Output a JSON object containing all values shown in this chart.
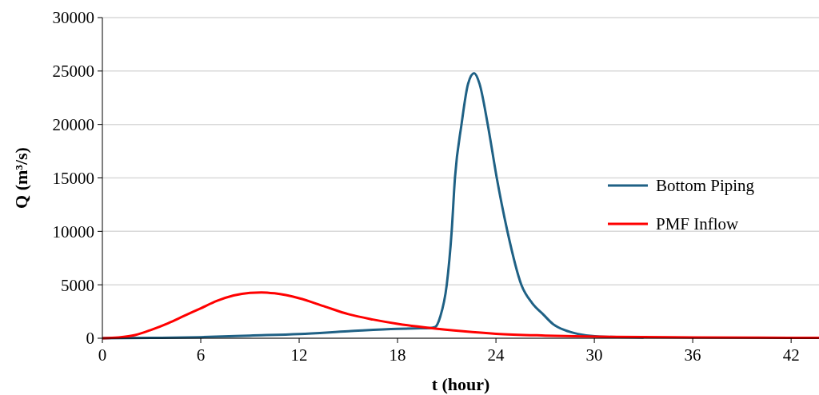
{
  "chart_data": {
    "type": "line",
    "xlabel": "t (hour)",
    "ylabel": "Q (m³/s)",
    "xlim": [
      0,
      43.7
    ],
    "xticks": [
      0,
      6,
      12,
      18,
      24,
      30,
      36,
      42
    ],
    "ylim": [
      0,
      30000
    ],
    "yticks": [
      0,
      5000,
      10000,
      15000,
      20000,
      25000,
      30000
    ],
    "grid": "y",
    "legend": "right",
    "marker": "none",
    "line_style": "solid",
    "series": [
      {
        "name": "Bottom Piping",
        "color": "#1f6185",
        "x": [
          0,
          3,
          6,
          9,
          12,
          15,
          18,
          19,
          20,
          20.3,
          20.6,
          21,
          21.3,
          21.5,
          21.9,
          22.3,
          22.67,
          23,
          23.5,
          24.05,
          24.7,
          25.55,
          26.2,
          26.9,
          27.5,
          28.2,
          29,
          30.3,
          33
        ],
        "values": [
          0,
          30,
          100,
          250,
          400,
          650,
          880,
          920,
          950,
          1050,
          2000,
          5000,
          10000,
          15000,
          20000,
          23800,
          24800,
          23800,
          20000,
          15000,
          10000,
          5000,
          3300,
          2200,
          1300,
          750,
          400,
          150,
          80
        ]
      },
      {
        "name": "PMF Inflow",
        "color": "#ff0000",
        "x": [
          0,
          1,
          2,
          3,
          4,
          5,
          6,
          7,
          8,
          9,
          9.7,
          10.5,
          12,
          13.5,
          15,
          16.5,
          18,
          20,
          22,
          24,
          27,
          30,
          33,
          36,
          40,
          43.7
        ],
        "values": [
          0,
          80,
          300,
          800,
          1400,
          2100,
          2800,
          3500,
          4000,
          4250,
          4290,
          4200,
          3740,
          3000,
          2250,
          1750,
          1350,
          950,
          650,
          420,
          250,
          150,
          110,
          80,
          50,
          30
        ]
      }
    ]
  }
}
